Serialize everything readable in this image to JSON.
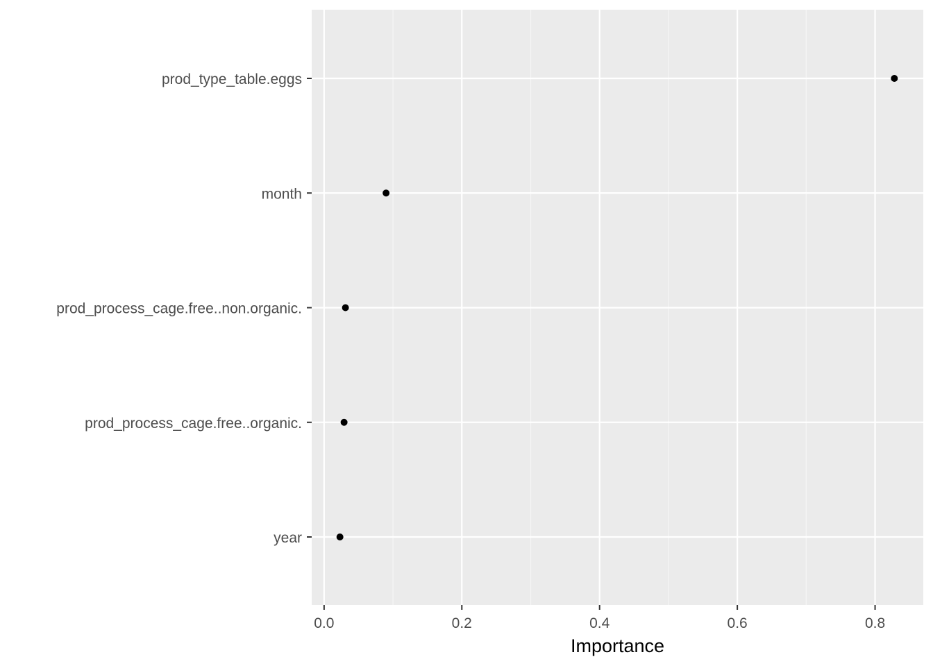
{
  "chart_data": {
    "type": "scatter",
    "title": "",
    "xlabel": "Importance",
    "ylabel": "",
    "xlim": [
      -0.018,
      0.87
    ],
    "x_ticks": [
      {
        "value": 0.0,
        "label": "0.0"
      },
      {
        "value": 0.2,
        "label": "0.2"
      },
      {
        "value": 0.4,
        "label": "0.4"
      },
      {
        "value": 0.6,
        "label": "0.6"
      },
      {
        "value": 0.8,
        "label": "0.8"
      }
    ],
    "categories": [
      "prod_type_table.eggs",
      "month",
      "prod_process_cage.free..non.organic.",
      "prod_process_cage.free..organic.",
      "year"
    ],
    "values": [
      0.828,
      0.09,
      0.031,
      0.029,
      0.023
    ],
    "grid": true,
    "legend": "none",
    "colors": {
      "panel_background": "#ebebeb",
      "grid_major": "#ffffff",
      "grid_minor": "#f5f5f5",
      "point": "#000000",
      "tick_label": "#4d4d4d",
      "tick_mark": "#333333"
    }
  }
}
